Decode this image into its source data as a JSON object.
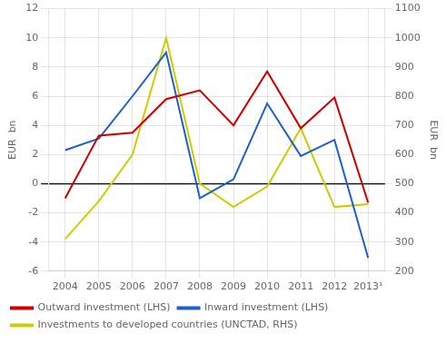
{
  "chart_data": {
    "type": "line",
    "categories": [
      "2004",
      "2005",
      "2006",
      "2007",
      "2008",
      "2009",
      "2010",
      "2011",
      "2012",
      "2013¹"
    ],
    "series": [
      {
        "name": "Outward investment (LHS)",
        "color": "#cc0000",
        "values": [
          -1.0,
          3.3,
          3.5,
          5.8,
          6.4,
          4.0,
          7.7,
          3.8,
          5.9,
          -1.3
        ]
      },
      {
        "name": "Inward investment (LHS)",
        "color": "#1f5fcc",
        "values": [
          2.3,
          3.1,
          6.0,
          9.0,
          -1.0,
          0.3,
          5.5,
          1.9,
          3.0,
          -5.1
        ]
      },
      {
        "name": "Investments to developed countries (UNCTAD, RHS)",
        "color": "#cccc00",
        "values": [
          310,
          440,
          600,
          1000,
          500,
          420,
          490,
          690,
          420,
          430
        ],
        "axis": "y2"
      }
    ],
    "ylim": [
      -6,
      12
    ],
    "yticks": [
      -6,
      -4,
      -2,
      0,
      2,
      4,
      6,
      8,
      10,
      12
    ],
    "y2lim": [
      200,
      1100
    ],
    "y2ticks": [
      200,
      300,
      400,
      500,
      600,
      700,
      800,
      900,
      1000,
      1100
    ],
    "ylabel": "EUR  bn",
    "y2label": "EUR  bn",
    "grid": true,
    "legend": "bottom"
  }
}
